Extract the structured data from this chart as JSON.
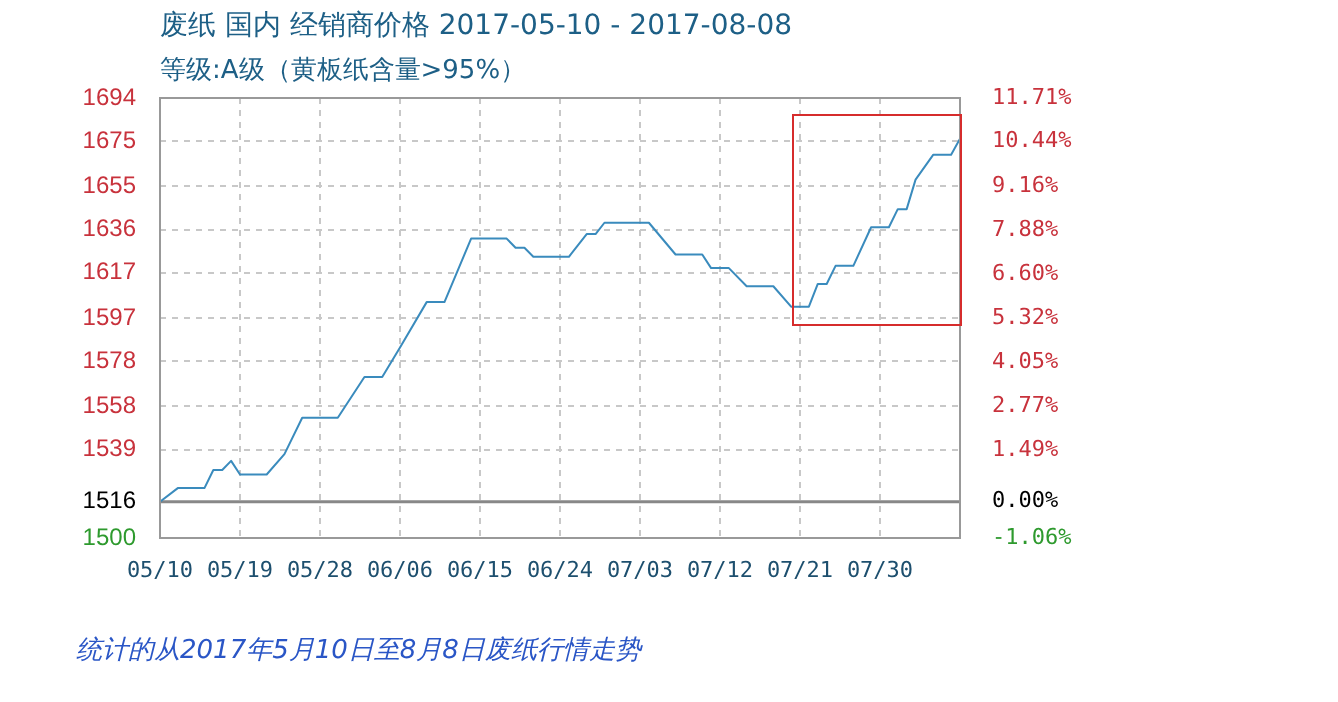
{
  "chart_data": {
    "type": "line",
    "title": "废纸 国内 经销商价格 2017-05-10 - 2017-08-08",
    "subtitle": "等级:A级（黄板纸含量>95%）",
    "annotations": [
      "统计的从2017年5月10日至8月8日废纸行情走势"
    ],
    "x": [
      "2017-05-10",
      "2017-05-12",
      "2017-05-15",
      "2017-05-16",
      "2017-05-17",
      "2017-05-18",
      "2017-05-19",
      "2017-05-22",
      "2017-05-24",
      "2017-05-26",
      "2017-05-30",
      "2017-06-02",
      "2017-06-04",
      "2017-06-06",
      "2017-06-09",
      "2017-06-11",
      "2017-06-14",
      "2017-06-18",
      "2017-06-19",
      "2017-06-20",
      "2017-06-21",
      "2017-06-25",
      "2017-06-27",
      "2017-06-28",
      "2017-06-29",
      "2017-07-04",
      "2017-07-07",
      "2017-07-10",
      "2017-07-11",
      "2017-07-13",
      "2017-07-15",
      "2017-07-18",
      "2017-07-20",
      "2017-07-22",
      "2017-07-23",
      "2017-07-24",
      "2017-07-25",
      "2017-07-27",
      "2017-07-29",
      "2017-07-31",
      "2017-08-01",
      "2017-08-02",
      "2017-08-03",
      "2017-08-05",
      "2017-08-07",
      "2017-08-08"
    ],
    "values": [
      1516,
      1522,
      1522,
      1530,
      1530,
      1534,
      1528,
      1528,
      1537,
      1553,
      1553,
      1571,
      1571,
      1584,
      1604,
      1604,
      1632,
      1632,
      1628,
      1628,
      1624,
      1624,
      1634,
      1634,
      1639,
      1639,
      1625,
      1625,
      1619,
      1619,
      1611,
      1611,
      1602,
      1602,
      1612,
      1612,
      1620,
      1620,
      1637,
      1637,
      1645,
      1645,
      1658,
      1669,
      1669,
      1676
    ],
    "color": "#3a8bbd",
    "xlim": [
      "2017-05-10",
      "2017-08-08"
    ],
    "xticks": [
      {
        "value": "2017-05-10",
        "label": "05/10"
      },
      {
        "value": "2017-05-19",
        "label": "05/19"
      },
      {
        "value": "2017-05-28",
        "label": "05/28"
      },
      {
        "value": "2017-06-06",
        "label": "06/06"
      },
      {
        "value": "2017-06-15",
        "label": "06/15"
      },
      {
        "value": "2017-06-24",
        "label": "06/24"
      },
      {
        "value": "2017-07-03",
        "label": "07/03"
      },
      {
        "value": "2017-07-12",
        "label": "07/12"
      },
      {
        "value": "2017-07-21",
        "label": "07/21"
      },
      {
        "value": "2017-07-30",
        "label": "07/30"
      }
    ],
    "ylim": [
      1500,
      1694
    ],
    "yticks": [
      1500,
      1516,
      1539,
      1558,
      1578,
      1597,
      1617,
      1636,
      1655,
      1675,
      1694
    ],
    "y2lim": [
      -1.06,
      11.71
    ],
    "y2ticks": [
      {
        "value": -1.06,
        "label": "-1.06%"
      },
      {
        "value": 0,
        "label": "0.00%"
      },
      {
        "value": 1.49,
        "label": "1.49%"
      },
      {
        "value": 2.77,
        "label": "2.77%"
      },
      {
        "value": 4.05,
        "label": "4.05%"
      },
      {
        "value": 5.32,
        "label": "5.32%"
      },
      {
        "value": 6.6,
        "label": "6.60%"
      },
      {
        "value": 7.88,
        "label": "7.88%"
      },
      {
        "value": 9.16,
        "label": "9.16%"
      },
      {
        "value": 10.44,
        "label": "10.44%"
      },
      {
        "value": 11.71,
        "label": "11.71%"
      }
    ],
    "ref_lines": [
      {
        "axis": "y",
        "value": 1516,
        "color": "#888888"
      }
    ],
    "grid": true,
    "legend": false,
    "marker": "none",
    "line_style": "solid"
  }
}
